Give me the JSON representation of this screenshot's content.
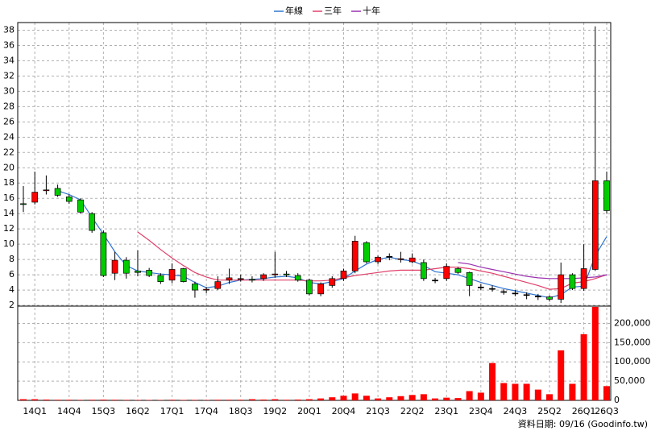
{
  "chart_data": {
    "type": "candlestick",
    "footer": "資料日期: 09/16 (Goodinfo.tw)",
    "categories": [
      null,
      "14Q1",
      null,
      null,
      "14Q4",
      null,
      null,
      "15Q3",
      null,
      null,
      "16Q2",
      null,
      null,
      "17Q1",
      null,
      null,
      "17Q4",
      null,
      null,
      "18Q3",
      null,
      null,
      "19Q2",
      null,
      null,
      "20Q1",
      null,
      null,
      "20Q4",
      null,
      null,
      "21Q3",
      null,
      null,
      "22Q2",
      null,
      null,
      "23Q1",
      null,
      null,
      "23Q4",
      null,
      null,
      "24Q3",
      null,
      null,
      "25Q2",
      null,
      null,
      "26Q1",
      null,
      "26Q3"
    ],
    "open": [
      15.3,
      15.5,
      17,
      17.3,
      16.2,
      15.8,
      14,
      11.5,
      6.2,
      7.9,
      6.5,
      6.6,
      5.9,
      5.3,
      6.8,
      4.8,
      4,
      4.2,
      5.3,
      5.4,
      5.4,
      5.5,
      6,
      6.1,
      5.9,
      5.3,
      3.5,
      4.6,
      5.5,
      6.5,
      10.2,
      7.7,
      8.4,
      8,
      7.7,
      7.6,
      5.3,
      5.5,
      6.8,
      6.3,
      4.4,
      4.2,
      3.8,
      3.6,
      3.4,
      3.2,
      3.1,
      2.8,
      6,
      4.2,
      6.7,
      18.3
    ],
    "high": [
      17.6,
      19.5,
      19,
      17.8,
      16.5,
      16,
      14.2,
      11.8,
      9,
      8.3,
      9.2,
      6.9,
      6.2,
      7.5,
      6.9,
      5.1,
      4.4,
      5.8,
      6.8,
      6,
      5.8,
      6.2,
      9,
      6.5,
      6.2,
      5.5,
      5,
      5.8,
      6.8,
      11.1,
      10.4,
      8.5,
      8.8,
      9,
      8.8,
      8,
      5.6,
      7.5,
      7,
      6.4,
      4.8,
      4.6,
      4.1,
      4,
      3.7,
      3.5,
      3.3,
      7.6,
      6.2,
      10,
      38.5,
      19.5
    ],
    "low": [
      14.2,
      15.2,
      16.5,
      16.2,
      15.3,
      14,
      11.5,
      5.7,
      5.3,
      5.5,
      5.8,
      5.7,
      4.8,
      4.9,
      5,
      3,
      3.6,
      4,
      4.8,
      5.1,
      5,
      5.2,
      5.6,
      5.7,
      5.1,
      3.3,
      3.2,
      4.3,
      5.2,
      6.2,
      7.5,
      7.4,
      7.9,
      7.6,
      7.5,
      5.2,
      4.9,
      5.2,
      6.1,
      3.2,
      4,
      3.8,
      3.4,
      3.2,
      2.8,
      2.7,
      2.5,
      2.3,
      4,
      3.9,
      6.5,
      14
    ],
    "close": [
      15.2,
      16.8,
      17.1,
      16.4,
      15.6,
      14.2,
      11.8,
      5.9,
      7.9,
      6.2,
      6.3,
      5.9,
      5.1,
      6.7,
      5.1,
      4,
      4.1,
      5.1,
      5.6,
      5.5,
      5.3,
      6,
      6.1,
      6,
      5.3,
      3.5,
      4.8,
      5.5,
      6.5,
      10.4,
      7.7,
      8.3,
      8.4,
      8.1,
      8.2,
      5.5,
      5.3,
      7.1,
      6.3,
      4.6,
      4.4,
      4.2,
      3.8,
      3.6,
      3.4,
      3.2,
      2.8,
      6,
      4.2,
      6.8,
      18.3,
      14.4
    ],
    "up_color": "#ff0000",
    "down_color": "#00cc00",
    "ylim": [
      1.9,
      39
    ],
    "yticks": [
      2,
      4,
      6,
      8,
      10,
      12,
      14,
      16,
      18,
      20,
      22,
      24,
      26,
      28,
      30,
      32,
      34,
      36,
      38
    ],
    "series": [
      {
        "name": "年線",
        "color": "#2f74d0",
        "values": [
          null,
          null,
          null,
          17,
          16.5,
          15.8,
          13.5,
          11.3,
          9,
          7.2,
          6.5,
          6.3,
          6.1,
          6,
          5.8,
          5,
          4.3,
          4.5,
          5,
          5.3,
          5.4,
          5.5,
          5.7,
          5.8,
          5.6,
          5,
          4.8,
          5.1,
          5.5,
          6.5,
          7.4,
          8,
          8.3,
          8,
          7.8,
          7.2,
          6.4,
          6.2,
          6,
          5.5,
          5,
          4.6,
          4.2,
          3.9,
          3.6,
          3.3,
          3,
          3.4,
          4.4,
          4.5,
          8.5,
          11
        ]
      },
      {
        "name": "三年",
        "color": "#e0406a",
        "values": [
          null,
          null,
          null,
          null,
          null,
          null,
          null,
          null,
          null,
          null,
          11.6,
          10.5,
          9.3,
          8.2,
          7.2,
          6.3,
          5.7,
          5.3,
          5.3,
          5.3,
          5.3,
          5.3,
          5.3,
          5.3,
          5.3,
          5.2,
          5.2,
          5.3,
          5.6,
          5.9,
          6.1,
          6.3,
          6.5,
          6.6,
          6.6,
          6.6,
          6.8,
          7,
          7,
          6.8,
          6.5,
          6.2,
          5.8,
          5.4,
          5,
          4.6,
          4.1,
          4.2,
          4.9,
          5.1,
          5.5,
          6
        ]
      },
      {
        "name": "十年",
        "color": "#9a30b0",
        "values": [
          null,
          null,
          null,
          null,
          null,
          null,
          null,
          null,
          null,
          null,
          null,
          null,
          null,
          null,
          null,
          null,
          null,
          null,
          null,
          null,
          null,
          null,
          null,
          null,
          null,
          null,
          null,
          null,
          null,
          null,
          null,
          null,
          null,
          null,
          null,
          null,
          null,
          null,
          7.6,
          7.4,
          7,
          6.7,
          6.4,
          6.1,
          5.8,
          5.6,
          5.5,
          5.5,
          5.5,
          5.6,
          5.7,
          6
        ]
      }
    ],
    "volume": {
      "color": "#ff0000",
      "values": [
        3000,
        3000,
        2000,
        1500,
        1500,
        1200,
        1500,
        1800,
        1500,
        1200,
        1000,
        1000,
        800,
        1500,
        1000,
        1200,
        800,
        1500,
        1500,
        1500,
        3000,
        2000,
        3000,
        1500,
        2000,
        3000,
        5000,
        8000,
        12000,
        18000,
        12000,
        5000,
        8000,
        11000,
        14000,
        16000,
        5000,
        7000,
        6000,
        24000,
        20000,
        97000,
        45000,
        43000,
        43000,
        28000,
        16000,
        130000,
        43000,
        172000,
        243000,
        37000
      ],
      "ylim": [
        0,
        245000
      ],
      "yticks": [
        0,
        {
          "value": 50000,
          "label": "50,000"
        },
        {
          "value": 100000,
          "label": "100,000"
        },
        {
          "value": 150000,
          "label": "150,000"
        },
        {
          "value": 200000,
          "label": "200,000"
        }
      ]
    },
    "grid": true
  }
}
